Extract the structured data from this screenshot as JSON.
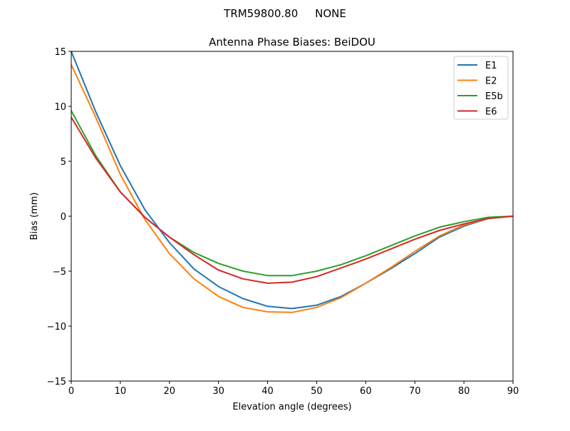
{
  "chart_data": {
    "type": "line",
    "suptitle": "TRM59800.80     NONE",
    "title": "Antenna Phase Biases: BeiDOU",
    "xlabel": "Elevation angle (degrees)",
    "ylabel": "Bias (mm)",
    "xlim": [
      0,
      90
    ],
    "ylim": [
      -15,
      15
    ],
    "xticks": [
      0,
      10,
      20,
      30,
      40,
      50,
      60,
      70,
      80,
      90
    ],
    "yticks": [
      -15,
      -10,
      -5,
      0,
      5,
      10,
      15
    ],
    "ytick_labels": [
      "−15",
      "−10",
      "−5",
      "0",
      "5",
      "10",
      "15"
    ],
    "grid": false,
    "legend_position": "top-right",
    "x": [
      0,
      5,
      10,
      15,
      20,
      25,
      30,
      35,
      40,
      45,
      50,
      55,
      60,
      65,
      70,
      75,
      80,
      85,
      90
    ],
    "series": [
      {
        "name": "E1",
        "color": "#1f77b4",
        "values": [
          15.0,
          9.5,
          4.6,
          0.6,
          -2.4,
          -4.8,
          -6.4,
          -7.5,
          -8.2,
          -8.4,
          -8.1,
          -7.3,
          -6.1,
          -4.8,
          -3.4,
          -1.9,
          -0.9,
          -0.2,
          0.0
        ]
      },
      {
        "name": "E2",
        "color": "#ff7f0e",
        "values": [
          13.8,
          9.0,
          3.8,
          -0.3,
          -3.4,
          -5.7,
          -7.3,
          -8.3,
          -8.7,
          -8.75,
          -8.3,
          -7.4,
          -6.1,
          -4.7,
          -3.2,
          -1.8,
          -0.8,
          -0.2,
          0.0
        ]
      },
      {
        "name": "E5b",
        "color": "#2ca02c",
        "values": [
          9.6,
          5.5,
          2.2,
          -0.1,
          -1.9,
          -3.3,
          -4.3,
          -5.0,
          -5.4,
          -5.4,
          -5.0,
          -4.4,
          -3.6,
          -2.7,
          -1.8,
          -1.0,
          -0.5,
          -0.1,
          0.0
        ]
      },
      {
        "name": "E6",
        "color": "#d62728",
        "values": [
          9.0,
          5.3,
          2.2,
          -0.1,
          -1.9,
          -3.5,
          -4.9,
          -5.7,
          -6.1,
          -6.0,
          -5.5,
          -4.7,
          -3.9,
          -3.0,
          -2.1,
          -1.3,
          -0.7,
          -0.2,
          0.0
        ]
      }
    ]
  }
}
